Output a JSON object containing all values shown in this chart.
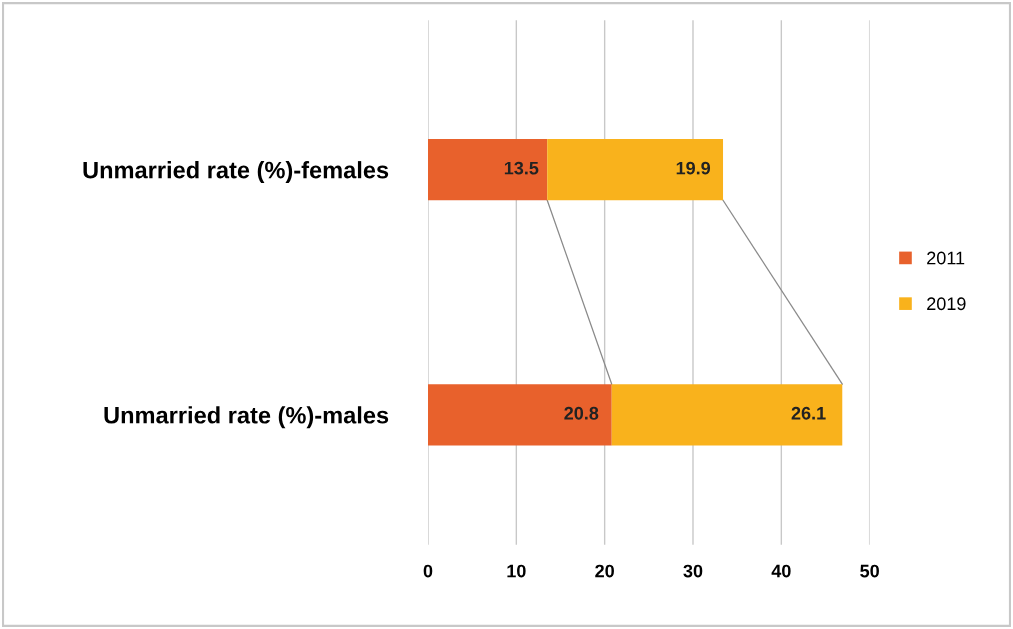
{
  "chart_data": {
    "type": "bar",
    "orientation": "horizontal",
    "stacked": true,
    "categories": [
      "Unmarried rate (%)-females",
      "Unmarried rate (%)-males"
    ],
    "series": [
      {
        "name": "2011",
        "color": "#e8612c",
        "values": [
          13.5,
          20.8
        ]
      },
      {
        "name": "2019",
        "color": "#f9b21c",
        "values": [
          19.9,
          26.1
        ]
      }
    ],
    "xlim": [
      0,
      50
    ],
    "xticks": [
      0,
      10,
      20,
      30,
      40,
      50
    ],
    "grid": "x",
    "legend": "right",
    "data_labels": true
  }
}
